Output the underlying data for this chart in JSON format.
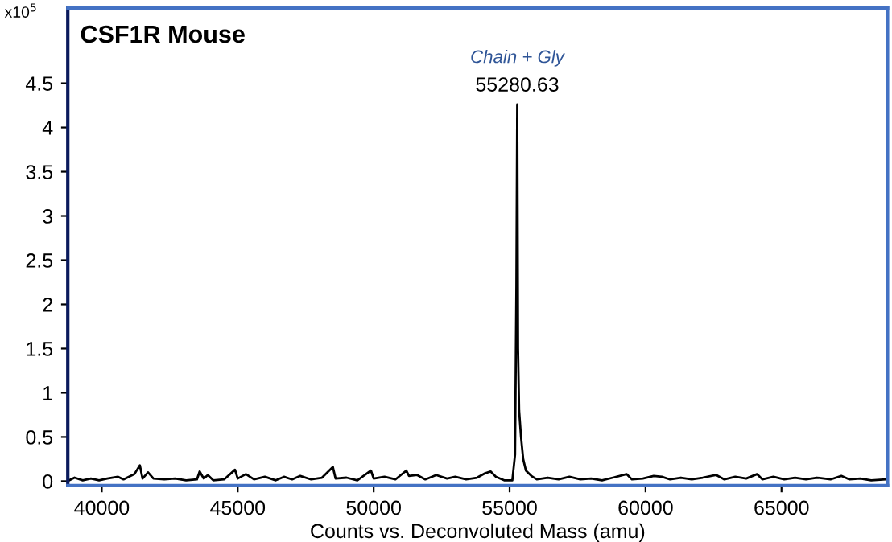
{
  "chart_data": {
    "type": "line",
    "title": "CSF1R Mouse",
    "xlabel": "Counts vs. Deconvoluted Mass (amu)",
    "ylabel": "x10$^{5}$",
    "series": [
      {
        "color": "#000000",
        "x": [
          38800,
          39000,
          39300,
          39600,
          39900,
          40200,
          40600,
          40800,
          41200,
          41400,
          41500,
          41700,
          41900,
          42300,
          42700,
          43100,
          43500,
          43600,
          43750,
          43900,
          44100,
          44500,
          44900,
          45000,
          45300,
          45600,
          46000,
          46400,
          46700,
          47000,
          47300,
          47700,
          48100,
          48500,
          48600,
          49000,
          49400,
          49900,
          50000,
          50400,
          50800,
          51200,
          51300,
          51600,
          51900,
          52300,
          52700,
          53000,
          53400,
          53800,
          54100,
          54300,
          54500,
          54800,
          55100,
          55200,
          55250,
          55280.63,
          55310,
          55350,
          55420,
          55500,
          55600,
          55800,
          56000,
          56400,
          56800,
          57200,
          57600,
          58000,
          58400,
          58800,
          59300,
          59500,
          59900,
          60300,
          60600,
          60900,
          61300,
          61700,
          62100,
          62600,
          62900,
          63300,
          63700,
          64100,
          64300,
          64700,
          65100,
          65500,
          65900,
          66300,
          66800,
          67200,
          67500,
          67900,
          68300,
          68800
        ],
        "values": [
          0.01,
          0.04,
          0.01,
          0.03,
          0.01,
          0.03,
          0.05,
          0.02,
          0.08,
          0.18,
          0.03,
          0.1,
          0.03,
          0.02,
          0.03,
          0.01,
          0.02,
          0.11,
          0.03,
          0.07,
          0.01,
          0.02,
          0.13,
          0.03,
          0.08,
          0.02,
          0.05,
          0.01,
          0.05,
          0.02,
          0.06,
          0.02,
          0.04,
          0.16,
          0.03,
          0.04,
          0.01,
          0.12,
          0.03,
          0.05,
          0.02,
          0.12,
          0.06,
          0.07,
          0.02,
          0.07,
          0.03,
          0.05,
          0.02,
          0.04,
          0.09,
          0.11,
          0.05,
          0.01,
          0.01,
          0.3,
          2.2,
          4.26,
          1.5,
          0.8,
          0.5,
          0.25,
          0.12,
          0.06,
          0.02,
          0.04,
          0.02,
          0.05,
          0.02,
          0.03,
          0.01,
          0.04,
          0.08,
          0.02,
          0.03,
          0.06,
          0.05,
          0.02,
          0.04,
          0.02,
          0.04,
          0.07,
          0.02,
          0.05,
          0.03,
          0.08,
          0.02,
          0.05,
          0.02,
          0.04,
          0.02,
          0.04,
          0.02,
          0.06,
          0.02,
          0.03,
          0.01,
          0.02
        ]
      }
    ],
    "annotations": [
      {
        "text": "Chain + Gly",
        "x": 55280.63,
        "y": 4.26
      },
      {
        "text": "55280.63",
        "x": 55280.63,
        "y": 4.26
      }
    ],
    "xlim": [
      38750,
      68900
    ],
    "xticks": [
      40000,
      45000,
      50000,
      55000,
      60000,
      65000
    ],
    "ylim": [
      -0.05,
      5.35
    ],
    "yticks": [
      0,
      0.5,
      1,
      1.5,
      2,
      2.5,
      3,
      3.5,
      4,
      4.5
    ],
    "grid": false,
    "legend": false,
    "marker": "none",
    "line_style": "solid"
  }
}
